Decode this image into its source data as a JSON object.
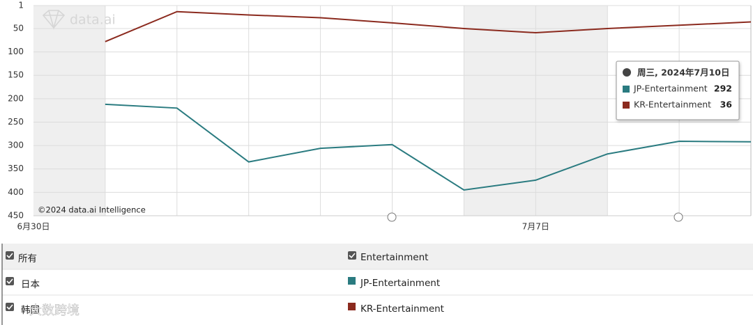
{
  "chart_data": {
    "type": "line",
    "watermark": "data.ai",
    "copyright": "©2024 data.ai Intelligence",
    "categories": [
      "6月30日",
      null,
      null,
      null,
      null,
      null,
      null,
      "7月7日",
      null,
      null,
      null
    ],
    "series": [
      {
        "name": "JP-Entertainment",
        "color": "#2a7b80",
        "values": [
          null,
          212,
          220,
          335,
          306,
          298,
          395,
          374,
          318,
          291,
          292
        ]
      },
      {
        "name": "KR-Entertainment",
        "color": "#8b2a1e",
        "values": [
          null,
          78,
          14,
          21,
          27,
          38,
          50,
          59,
          50,
          43,
          36
        ]
      }
    ],
    "ylim": [
      1,
      450
    ],
    "y_inverted": true,
    "yticks": [
      1,
      50,
      100,
      150,
      200,
      250,
      300,
      350,
      400,
      450
    ],
    "grid": true,
    "shaded": [
      [
        0,
        1
      ],
      [
        6,
        8
      ]
    ],
    "tooltip": {
      "title": "周三, 2024年7月10日",
      "index": 10
    }
  },
  "table": {
    "rows": [
      [
        "所有",
        "Entertainment"
      ],
      [
        "日本",
        "JP-Entertainment"
      ],
      [
        "韩国",
        "KR-Entertainment"
      ]
    ]
  },
  "overlay_watermark": "大数跨境"
}
